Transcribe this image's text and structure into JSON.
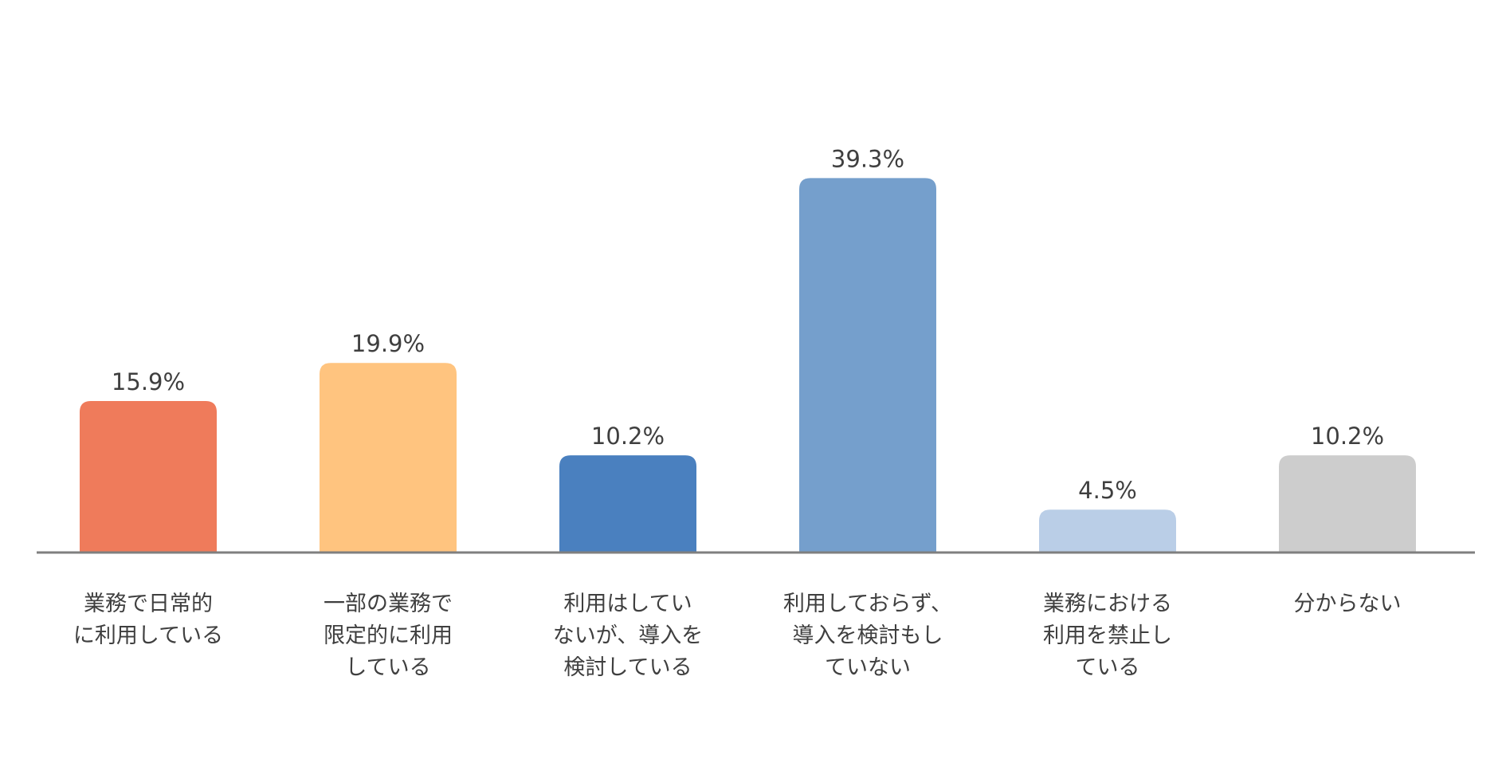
{
  "chart_data": {
    "type": "bar",
    "categories": [
      [
        "業務で日常的",
        "に利用している"
      ],
      [
        "一部の業務で",
        "限定的に利用",
        "している"
      ],
      [
        "利用はしてい",
        "ないが、導入を",
        "検討している"
      ],
      [
        "利用しておらず、",
        "導入を検討もし",
        "ていない"
      ],
      [
        "業務における",
        "利用を禁止し",
        "ている"
      ],
      [
        "分からない"
      ]
    ],
    "values": [
      15.9,
      19.9,
      10.2,
      39.3,
      4.5,
      10.2
    ],
    "data_labels": [
      "15.9%",
      "19.9%",
      "10.2%",
      "39.3%",
      "4.5%",
      "10.2%"
    ],
    "colors": [
      "#EF7B5B",
      "#FFC47F",
      "#4A80BF",
      "#759FCC",
      "#BACEE7",
      "#CDCDCD"
    ],
    "axis_color": "#7f7f7f",
    "title": "",
    "xlabel": "",
    "ylabel": "",
    "ylim": [
      0,
      40
    ],
    "grid": false,
    "legend": "none"
  }
}
